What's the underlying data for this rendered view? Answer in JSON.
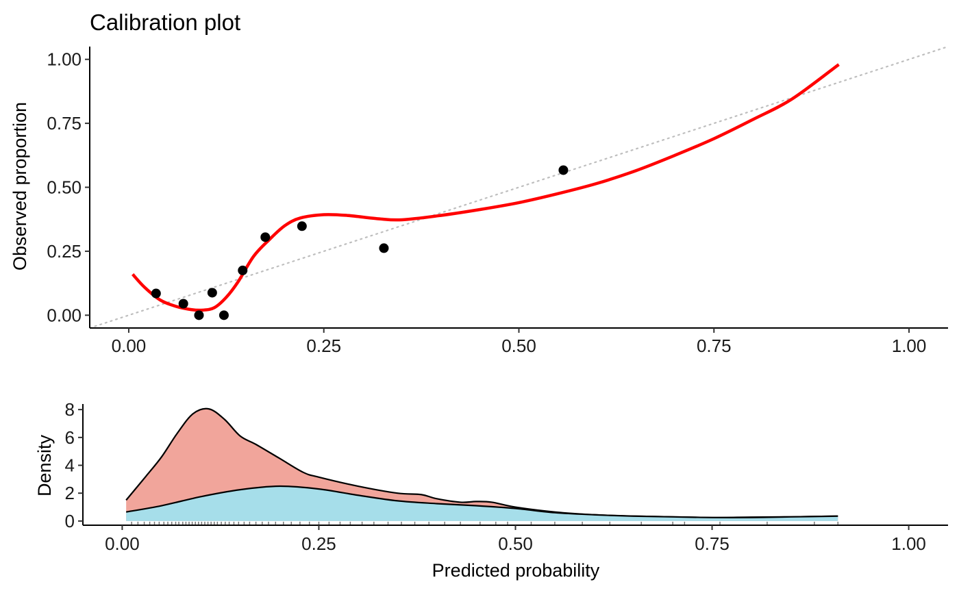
{
  "chart_data": [
    {
      "type": "scatter",
      "title": "Calibration plot",
      "xlabel": "",
      "ylabel": "Observed proportion",
      "xlim": [
        -0.05,
        1.05
      ],
      "ylim": [
        -0.05,
        1.05
      ],
      "xticks": [
        0.0,
        0.25,
        0.5,
        0.75,
        1.0
      ],
      "xtick_labels": [
        "0.00",
        "0.25",
        "0.50",
        "0.75",
        "1.00"
      ],
      "yticks": [
        0.0,
        0.25,
        0.5,
        0.75,
        1.0
      ],
      "ytick_labels": [
        "0.00",
        "0.25",
        "0.50",
        "0.75",
        "1.00"
      ],
      "grid": false,
      "points": {
        "color": "#000000",
        "x": [
          0.035,
          0.07,
          0.09,
          0.107,
          0.122,
          0.146,
          0.175,
          0.222,
          0.327,
          0.557
        ],
        "y": [
          0.085,
          0.045,
          0.0,
          0.088,
          0.0,
          0.175,
          0.305,
          0.348,
          0.262,
          0.567
        ]
      },
      "smooth_curve": {
        "color": "#ff0000",
        "x": [
          0.005,
          0.02,
          0.04,
          0.06,
          0.08,
          0.095,
          0.11,
          0.125,
          0.14,
          0.16,
          0.18,
          0.2,
          0.22,
          0.25,
          0.28,
          0.32,
          0.35,
          0.4,
          0.45,
          0.5,
          0.55,
          0.6,
          0.65,
          0.7,
          0.75,
          0.8,
          0.85,
          0.91
        ],
        "y": [
          0.16,
          0.11,
          0.06,
          0.035,
          0.022,
          0.02,
          0.03,
          0.07,
          0.13,
          0.23,
          0.295,
          0.35,
          0.38,
          0.393,
          0.39,
          0.377,
          0.373,
          0.39,
          0.413,
          0.44,
          0.475,
          0.515,
          0.565,
          0.625,
          0.69,
          0.765,
          0.845,
          0.98
        ]
      },
      "reference_line": {
        "color": "#bebebe",
        "style": "dotted",
        "x": [
          -0.05,
          1.05
        ],
        "y": [
          -0.05,
          1.05
        ]
      }
    },
    {
      "type": "area",
      "title": "",
      "xlabel": "Predicted probability",
      "ylabel": "Density",
      "xlim": [
        -0.05,
        1.05
      ],
      "ylim": [
        -0.3,
        8.4
      ],
      "xticks": [
        0.0,
        0.25,
        0.5,
        0.75,
        1.0
      ],
      "xtick_labels": [
        "0.00",
        "0.25",
        "0.50",
        "0.75",
        "1.00"
      ],
      "yticks": [
        0,
        2,
        4,
        6,
        8
      ],
      "ytick_labels": [
        "0",
        "2",
        "4",
        "6",
        "8"
      ],
      "grid": false,
      "series": [
        {
          "color": "#f1a59b",
          "x": [
            0.005,
            0.03,
            0.05,
            0.07,
            0.09,
            0.11,
            0.13,
            0.15,
            0.17,
            0.2,
            0.23,
            0.25,
            0.3,
            0.35,
            0.38,
            0.4,
            0.43,
            0.45,
            0.47,
            0.5,
            0.55,
            0.6,
            0.65,
            0.7,
            0.75,
            0.8,
            0.85,
            0.91
          ],
          "y": [
            1.5,
            3.2,
            4.6,
            6.3,
            7.7,
            8.05,
            7.3,
            6.1,
            5.5,
            4.5,
            3.5,
            3.15,
            2.5,
            2.0,
            1.9,
            1.6,
            1.35,
            1.4,
            1.35,
            1.0,
            0.65,
            0.45,
            0.35,
            0.3,
            0.25,
            0.28,
            0.3,
            0.35
          ]
        },
        {
          "color": "#a6deea",
          "x": [
            0.005,
            0.05,
            0.1,
            0.15,
            0.2,
            0.25,
            0.3,
            0.35,
            0.4,
            0.45,
            0.5,
            0.55,
            0.6,
            0.65,
            0.7,
            0.75,
            0.8,
            0.85,
            0.91
          ],
          "y": [
            0.65,
            1.1,
            1.75,
            2.25,
            2.5,
            2.3,
            1.85,
            1.45,
            1.25,
            1.1,
            0.9,
            0.6,
            0.45,
            0.35,
            0.3,
            0.25,
            0.25,
            0.3,
            0.35
          ]
        }
      ],
      "rug_x": [
        0.012,
        0.02,
        0.028,
        0.035,
        0.041,
        0.047,
        0.053,
        0.058,
        0.063,
        0.068,
        0.072,
        0.077,
        0.081,
        0.085,
        0.089,
        0.093,
        0.097,
        0.101,
        0.105,
        0.109,
        0.113,
        0.117,
        0.121,
        0.126,
        0.131,
        0.136,
        0.142,
        0.148,
        0.155,
        0.162,
        0.17,
        0.178,
        0.186,
        0.195,
        0.205,
        0.215,
        0.226,
        0.238,
        0.25,
        0.263,
        0.277,
        0.29,
        0.305,
        0.32,
        0.338,
        0.355,
        0.372,
        0.39,
        0.41,
        0.43,
        0.455,
        0.475,
        0.49,
        0.52,
        0.55,
        0.585,
        0.62,
        0.66,
        0.7,
        0.715,
        0.76,
        0.82,
        0.88,
        0.91
      ]
    }
  ]
}
